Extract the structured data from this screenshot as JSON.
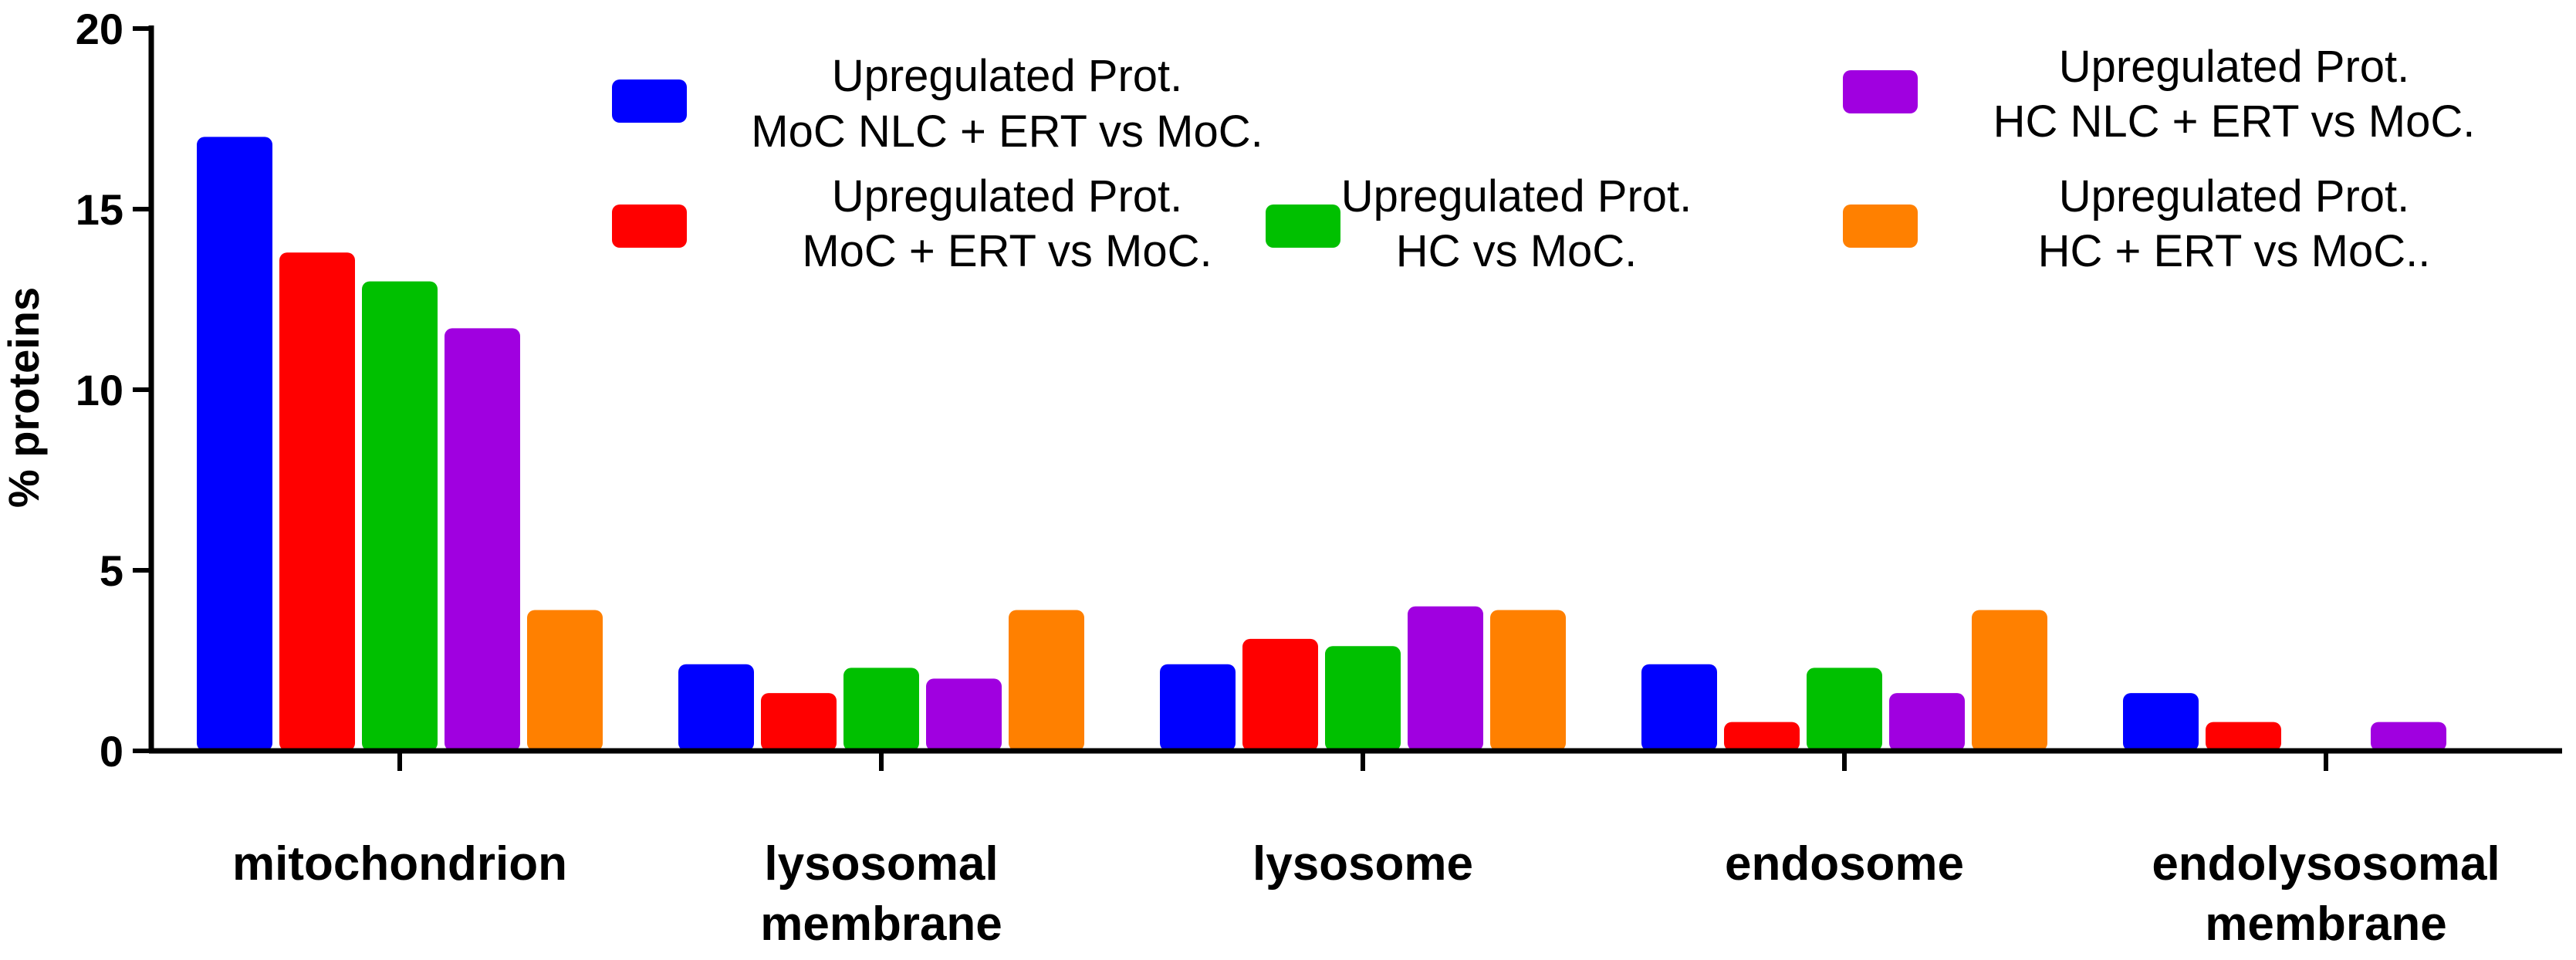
{
  "chart_data": {
    "type": "bar",
    "title": "",
    "xlabel": "",
    "ylabel": "% proteins",
    "ylim": [
      0,
      20
    ],
    "yticks": [
      "0",
      "5",
      "10",
      "15",
      "20"
    ],
    "grid": false,
    "categories": [
      [
        "mitochondrion"
      ],
      [
        "lysosomal",
        "membrane"
      ],
      [
        "lysosome"
      ],
      [
        "endosome"
      ],
      [
        "endolysosomal",
        "membrane"
      ]
    ],
    "series": [
      {
        "name": [
          "Upregulated Prot.",
          "MoC NLC + ERT vs MoC."
        ],
        "color": "#0000ff",
        "values": [
          17.0,
          2.4,
          2.4,
          2.4,
          1.6
        ]
      },
      {
        "name": [
          "Upregulated Prot.",
          "MoC + ERT vs MoC."
        ],
        "color": "#ff0000",
        "values": [
          13.8,
          1.6,
          3.1,
          0.8,
          0.8
        ]
      },
      {
        "name": [
          "Upregulated Prot.",
          "HC vs MoC."
        ],
        "color": "#00c000",
        "values": [
          13.0,
          2.3,
          2.9,
          2.3,
          0
        ]
      },
      {
        "name": [
          "Upregulated Prot.",
          "HC NLC + ERT vs MoC."
        ],
        "color": "#a000e0",
        "values": [
          11.7,
          2.0,
          4.0,
          1.6,
          0.8
        ]
      },
      {
        "name": [
          "Upregulated Prot.",
          "HC + ERT vs MoC.."
        ],
        "color": "#ff8000",
        "values": [
          3.9,
          3.9,
          3.9,
          3.9,
          0
        ]
      }
    ],
    "legend": "top, inside plot area"
  }
}
